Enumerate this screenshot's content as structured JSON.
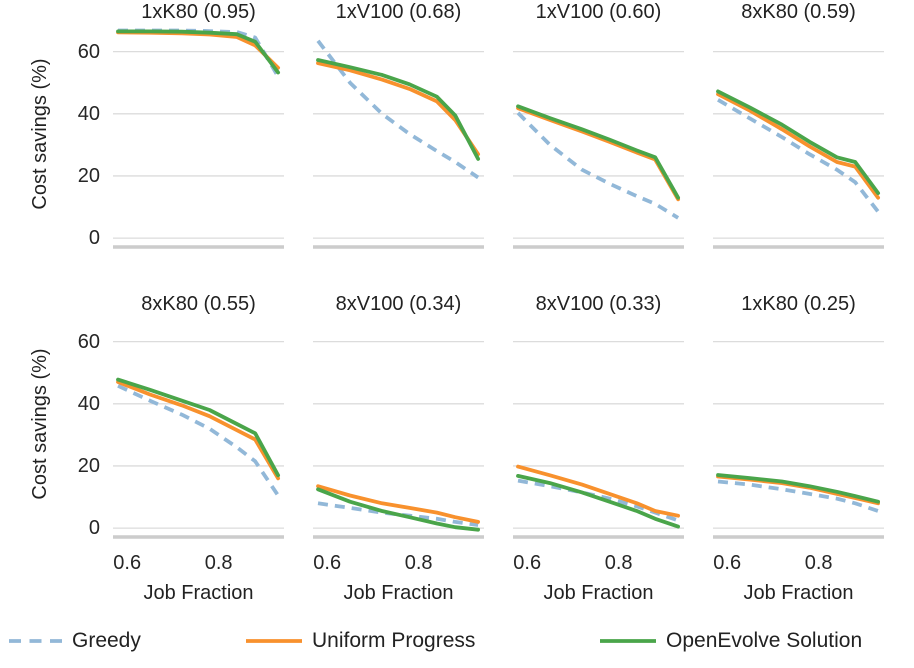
{
  "figure": {
    "ylabel": "Cost savings (%)",
    "xlabel": "Job Fraction",
    "background": "#ffffff",
    "grid_color": "#dcdcdc",
    "spine_color": "#cccccc",
    "text_color": "#222222",
    "legend": [
      {
        "label": "Greedy",
        "color": "#92b8d8",
        "dashed": true
      },
      {
        "label": "Uniform Progress",
        "color": "#f8912d",
        "dashed": false
      },
      {
        "label": "OpenEvolve Solution",
        "color": "#4aa54a",
        "dashed": false
      }
    ]
  },
  "chart_data": {
    "type": "line",
    "layout": {
      "rows": 2,
      "cols": 4
    },
    "xlabel": "Job Fraction",
    "ylabel": "Cost savings (%)",
    "x": [
      0.58,
      0.65,
      0.72,
      0.78,
      0.84,
      0.88,
      0.93
    ],
    "xlim": [
      0.569,
      0.943
    ],
    "ylim": [
      -3.5,
      70.5
    ],
    "xticks": [
      "0.6",
      "0.8"
    ],
    "xtick_values": [
      0.6,
      0.8
    ],
    "yticks": [
      "0",
      "20",
      "40",
      "60"
    ],
    "ytick_values": [
      0,
      20,
      40,
      60
    ],
    "grid": true,
    "legend_position": "bottom",
    "series_names": [
      "Greedy",
      "Uniform Progress",
      "OpenEvolve Solution"
    ],
    "subplots": [
      {
        "title": "1xK80 (0.95)",
        "series": [
          {
            "name": "Greedy",
            "values": [
              66.8,
              66.8,
              66.8,
              66.6,
              66.3,
              64.5,
              52.0
            ]
          },
          {
            "name": "Uniform Progress",
            "values": [
              66.2,
              66.1,
              65.9,
              65.5,
              64.7,
              62.0,
              54.8
            ]
          },
          {
            "name": "OpenEvolve Solution",
            "values": [
              66.5,
              66.5,
              66.4,
              66.1,
              65.6,
              63.2,
              53.3
            ]
          }
        ]
      },
      {
        "title": "1xV100 (0.68)",
        "series": [
          {
            "name": "Greedy",
            "values": [
              63.5,
              50.0,
              40.0,
              33.5,
              28.0,
              24.5,
              19.5
            ]
          },
          {
            "name": "Uniform Progress",
            "values": [
              56.3,
              54.0,
              51.0,
              48.0,
              44.0,
              38.0,
              27.0
            ]
          },
          {
            "name": "OpenEvolve Solution",
            "values": [
              57.3,
              55.0,
              52.5,
              49.5,
              45.5,
              39.5,
              25.5
            ]
          }
        ]
      },
      {
        "title": "1xV100 (0.60)",
        "series": [
          {
            "name": "Greedy",
            "values": [
              40.3,
              30.0,
              22.0,
              17.5,
              13.5,
              11.0,
              6.5
            ]
          },
          {
            "name": "Uniform Progress",
            "values": [
              41.8,
              38.0,
              34.3,
              31.0,
              27.5,
              25.3,
              12.5
            ]
          },
          {
            "name": "OpenEvolve Solution",
            "values": [
              42.4,
              38.6,
              35.0,
              31.7,
              28.2,
              26.0,
              13.0
            ]
          }
        ]
      },
      {
        "title": "8xK80 (0.59)",
        "series": [
          {
            "name": "Greedy",
            "values": [
              44.5,
              38.5,
              32.5,
              27.0,
              22.0,
              18.0,
              8.5
            ]
          },
          {
            "name": "Uniform Progress",
            "values": [
              46.3,
              41.0,
              35.0,
              29.5,
              24.5,
              23.0,
              13.0
            ]
          },
          {
            "name": "OpenEvolve Solution",
            "values": [
              47.2,
              42.0,
              36.5,
              31.0,
              26.0,
              24.5,
              14.5
            ]
          }
        ]
      },
      {
        "title": "8xK80 (0.55)",
        "series": [
          {
            "name": "Greedy",
            "values": [
              45.8,
              41.0,
              36.5,
              32.0,
              26.0,
              21.5,
              10.5
            ]
          },
          {
            "name": "Uniform Progress",
            "values": [
              47.0,
              43.0,
              39.5,
              36.0,
              31.5,
              28.5,
              16.0
            ]
          },
          {
            "name": "OpenEvolve Solution",
            "values": [
              47.8,
              44.5,
              41.0,
              38.0,
              33.5,
              30.5,
              17.0
            ]
          }
        ]
      },
      {
        "title": "8xV100 (0.34)",
        "series": [
          {
            "name": "Greedy",
            "values": [
              8.0,
              6.5,
              5.0,
              4.0,
              3.0,
              2.0,
              1.0
            ]
          },
          {
            "name": "Uniform Progress",
            "values": [
              13.5,
              10.5,
              8.0,
              6.5,
              5.0,
              3.5,
              2.0
            ]
          },
          {
            "name": "OpenEvolve Solution",
            "values": [
              12.5,
              8.5,
              5.5,
              3.5,
              1.5,
              0.3,
              -0.5
            ]
          }
        ]
      },
      {
        "title": "8xV100 (0.33)",
        "series": [
          {
            "name": "Greedy",
            "values": [
              15.3,
              13.5,
              11.5,
              9.5,
              7.0,
              5.0,
              2.5
            ]
          },
          {
            "name": "Uniform Progress",
            "values": [
              19.8,
              17.0,
              14.0,
              11.0,
              8.0,
              5.5,
              4.0
            ]
          },
          {
            "name": "OpenEvolve Solution",
            "values": [
              16.8,
              14.5,
              11.5,
              8.5,
              5.5,
              3.0,
              0.5
            ]
          }
        ]
      },
      {
        "title": "1xK80 (0.25)",
        "series": [
          {
            "name": "Greedy",
            "values": [
              15.0,
              14.0,
              12.5,
              11.0,
              9.5,
              8.0,
              5.5
            ]
          },
          {
            "name": "Uniform Progress",
            "values": [
              16.6,
              15.6,
              14.5,
              13.0,
              11.0,
              9.7,
              8.0
            ]
          },
          {
            "name": "OpenEvolve Solution",
            "values": [
              17.1,
              16.1,
              15.0,
              13.5,
              11.7,
              10.3,
              8.5
            ]
          }
        ]
      }
    ]
  }
}
